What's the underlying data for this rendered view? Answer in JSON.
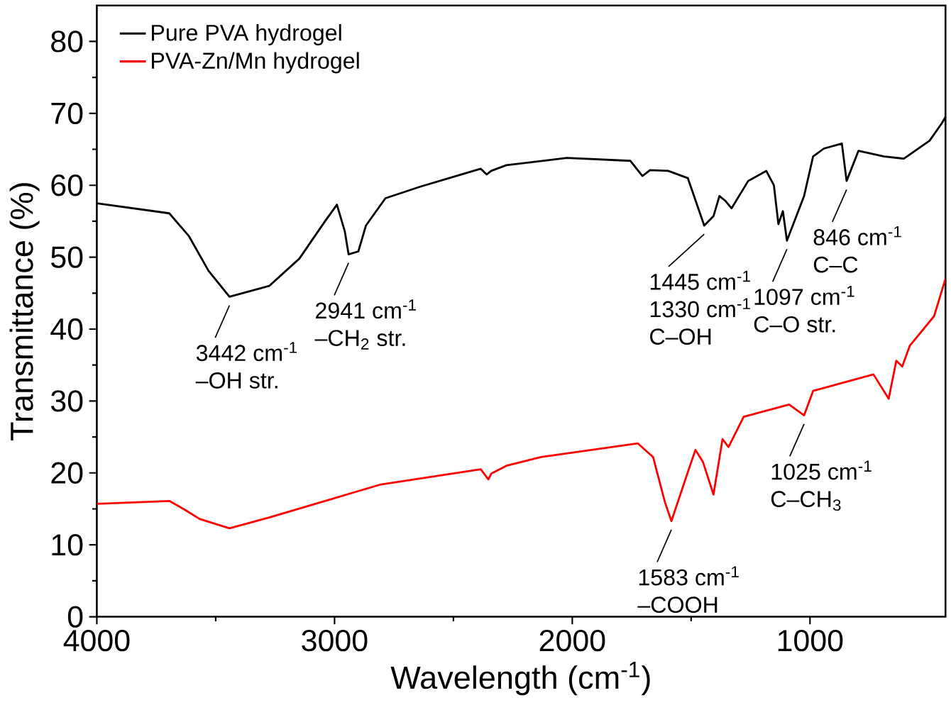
{
  "chart_data": {
    "type": "line",
    "xlabel": "Wavelength (cm$^{-1}$)",
    "ylabel": "Transmittance (%)",
    "xlim": [
      4000,
      430
    ],
    "ylim": [
      0,
      85
    ],
    "xticks": [
      4000,
      3000,
      2000,
      1000
    ],
    "yticks": [
      0,
      10,
      20,
      30,
      40,
      50,
      60,
      70,
      80
    ],
    "legend": "top left",
    "series": [
      {
        "name": "Pure PVA hydrogel",
        "color": "#000000",
        "x": [
          4000,
          3695,
          3612,
          3530,
          3442,
          3275,
          3148,
          3040,
          2990,
          2957,
          2941,
          2900,
          2868,
          2786,
          2640,
          2385,
          2360,
          2341,
          2277,
          2023,
          1756,
          1705,
          1673,
          1597,
          1514,
          1445,
          1406,
          1381,
          1355,
          1330,
          1260,
          1184,
          1152,
          1133,
          1114,
          1097,
          1025,
          987,
          942,
          866,
          846,
          796,
          688,
          605,
          497,
          446,
          430
        ],
        "values": [
          57.5,
          56.1,
          52.9,
          48.1,
          44.5,
          46,
          49.8,
          55,
          57.3,
          53.6,
          50.4,
          50.8,
          54.4,
          58.2,
          59.8,
          62.3,
          61.5,
          62,
          62.8,
          63.8,
          63.4,
          61.3,
          62.1,
          62,
          61,
          54.4,
          55.7,
          58.5,
          57.8,
          56.8,
          60.6,
          62,
          60,
          54.6,
          56.4,
          52.3,
          58.5,
          64,
          65.1,
          65.8,
          60.6,
          64.8,
          64,
          63.7,
          66.2,
          68.6,
          69.5
        ]
      },
      {
        "name": "PVA-Zn/Mn hydrogel",
        "color": "#ff0000",
        "x": [
          4000,
          3695,
          3631,
          3568,
          3442,
          3275,
          3020,
          2805,
          2385,
          2353,
          2341,
          2277,
          2131,
          1724,
          1660,
          1610,
          1583,
          1514,
          1482,
          1450,
          1406,
          1368,
          1343,
          1279,
          1088,
          1025,
          987,
          733,
          669,
          637,
          612,
          580,
          478,
          430
        ],
        "values": [
          15.7,
          16.1,
          14.9,
          13.6,
          12.3,
          13.8,
          16.3,
          18.4,
          20.5,
          19.1,
          19.9,
          21,
          22.2,
          24.1,
          22.2,
          15.9,
          13.3,
          20.1,
          23.2,
          21.5,
          17,
          24.7,
          23.6,
          27.8,
          29.5,
          28,
          31.4,
          33.7,
          30.3,
          35.6,
          34.8,
          37.7,
          41.8,
          47
        ]
      }
    ],
    "annotations": [
      {
        "text": "3442 cm$^{-1}$",
        "x": 3442,
        "y": 44.5
      },
      "–OH str.",
      {
        "text": "2941 cm$^{-1}$",
        "x": 2941,
        "y": 50.4
      },
      "–CH$_{2}$ str.",
      {
        "text": "1445 cm$^{-1}$",
        "x": 1445,
        "y": 54.4
      },
      "1330 cm$^{-1}$",
      "C–OH",
      {
        "text": "1097 cm$^{-1}$",
        "x": 1097,
        "y": 52.3
      },
      "C–O str.",
      {
        "text": "846 cm$^{-1}$",
        "x": 846,
        "y": 60.6
      },
      "C–C",
      {
        "text": "1583 cm$^{-1}$",
        "x": 1583,
        "y": 13.3
      },
      "–COOH",
      {
        "text": "1025 cm$^{-1}$",
        "x": 1025,
        "y": 28
      },
      "C–CH$_{3}$"
    ]
  }
}
